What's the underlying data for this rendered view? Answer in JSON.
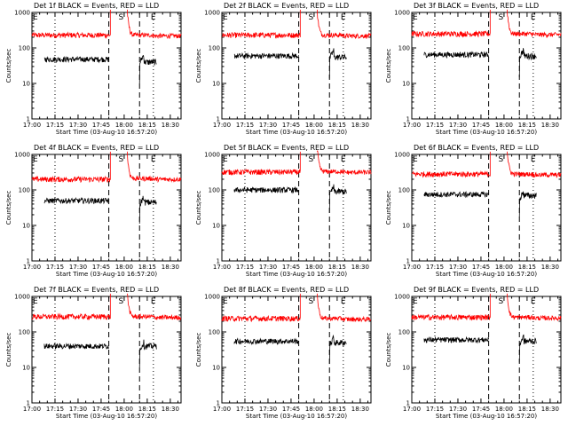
{
  "layout": {
    "rows": 3,
    "cols": 3
  },
  "chart_data": [
    {
      "type": "line",
      "title": "Det 1f BLACK = Events, RED = LLD",
      "xlabel": "Start Time (03-Aug-10 16:57:20)",
      "ylabel": "Counts/sec",
      "yscale": "log",
      "ylim": [
        1,
        1000
      ],
      "xlim": [
        "17:00",
        "18:37"
      ],
      "xticks": [
        "17:00",
        "17:15",
        "17:30",
        "17:45",
        "18:00",
        "18:15",
        "18:30"
      ],
      "yticks": [
        "1",
        "10",
        "100",
        "1000"
      ],
      "markers": [
        {
          "label": "E",
          "time": "17:00",
          "style": "none"
        },
        {
          "label": "S",
          "time": "17:58",
          "style": "dashed"
        },
        {
          "label": "E",
          "time": "18:19",
          "style": "dotted"
        }
      ],
      "vlines": [
        {
          "time": "17:15",
          "style": "dotted"
        },
        {
          "time": "17:50",
          "style": "dashed"
        },
        {
          "time": "18:10",
          "style": "dashed"
        },
        {
          "time": "18:19",
          "style": "dotted"
        }
      ],
      "series": [
        {
          "name": "LLD",
          "color": "#ff0000",
          "level": 230,
          "gap": [
            "17:51",
            "18:02"
          ],
          "peak": 1200,
          "post": 230
        },
        {
          "name": "Events",
          "color": "#000000",
          "level": 48,
          "start": "17:08",
          "end": "17:50",
          "restart": "18:10",
          "restart_level": 40,
          "bump": 60,
          "end2": "18:21"
        }
      ]
    },
    {
      "type": "line",
      "title": "Det 2f BLACK = Events, RED = LLD",
      "xlabel": "Start Time (03-Aug-10 16:57:20)",
      "ylabel": "Counts/sec",
      "yscale": "log",
      "ylim": [
        1,
        1000
      ],
      "xlim": [
        "17:00",
        "18:37"
      ],
      "xticks": [
        "17:00",
        "17:15",
        "17:30",
        "17:45",
        "18:00",
        "18:15",
        "18:30"
      ],
      "yticks": [
        "1",
        "10",
        "100",
        "1000"
      ],
      "markers": [
        {
          "label": "E",
          "time": "17:00",
          "style": "none"
        },
        {
          "label": "S",
          "time": "17:58",
          "style": "dashed"
        },
        {
          "label": "E",
          "time": "18:19",
          "style": "dotted"
        }
      ],
      "vlines": [
        {
          "time": "17:15",
          "style": "dotted"
        },
        {
          "time": "17:50",
          "style": "dashed"
        },
        {
          "time": "18:10",
          "style": "dashed"
        },
        {
          "time": "18:19",
          "style": "dotted"
        }
      ],
      "series": [
        {
          "name": "LLD",
          "color": "#ff0000",
          "level": 230,
          "gap": [
            "17:51",
            "18:02"
          ],
          "peak": 1200,
          "post": 230
        },
        {
          "name": "Events",
          "color": "#000000",
          "level": 60,
          "start": "17:08",
          "end": "17:50",
          "restart": "18:10",
          "restart_level": 55,
          "bump": 80,
          "end2": "18:21"
        }
      ]
    },
    {
      "type": "line",
      "title": "Det 3f BLACK = Events, RED = LLD",
      "xlabel": "Start Time (03-Aug-10 16:57:20)",
      "ylabel": "Counts/sec",
      "yscale": "log",
      "ylim": [
        1,
        1000
      ],
      "xlim": [
        "17:00",
        "18:37"
      ],
      "xticks": [
        "17:00",
        "17:15",
        "17:30",
        "17:45",
        "18:00",
        "18:15",
        "18:30"
      ],
      "yticks": [
        "1",
        "10",
        "100",
        "1000"
      ],
      "markers": [
        {
          "label": "E",
          "time": "17:00",
          "style": "none"
        },
        {
          "label": "S",
          "time": "17:58",
          "style": "dashed"
        },
        {
          "label": "E",
          "time": "18:19",
          "style": "dotted"
        }
      ],
      "vlines": [
        {
          "time": "17:15",
          "style": "dotted"
        },
        {
          "time": "17:50",
          "style": "dashed"
        },
        {
          "time": "18:10",
          "style": "dashed"
        },
        {
          "time": "18:19",
          "style": "dotted"
        }
      ],
      "series": [
        {
          "name": "LLD",
          "color": "#ff0000",
          "level": 250,
          "gap": [
            "17:51",
            "18:02"
          ],
          "peak": 1200,
          "post": 250
        },
        {
          "name": "Events",
          "color": "#000000",
          "level": 65,
          "start": "17:08",
          "end": "17:50",
          "restart": "18:10",
          "restart_level": 60,
          "bump": 85,
          "end2": "18:21"
        }
      ]
    },
    {
      "type": "line",
      "title": "Det 4f BLACK = Events, RED = LLD",
      "xlabel": "Start Time (03-Aug-10 16:57:20)",
      "ylabel": "Counts/sec",
      "yscale": "log",
      "ylim": [
        1,
        1000
      ],
      "xlim": [
        "17:00",
        "18:37"
      ],
      "xticks": [
        "17:00",
        "17:15",
        "17:30",
        "17:45",
        "18:00",
        "18:15",
        "18:30"
      ],
      "yticks": [
        "1",
        "10",
        "100",
        "1000"
      ],
      "markers": [
        {
          "label": "E",
          "time": "17:00",
          "style": "none"
        },
        {
          "label": "S",
          "time": "17:58",
          "style": "dashed"
        },
        {
          "label": "E",
          "time": "18:19",
          "style": "dotted"
        }
      ],
      "vlines": [
        {
          "time": "17:15",
          "style": "dotted"
        },
        {
          "time": "17:50",
          "style": "dashed"
        },
        {
          "time": "18:10",
          "style": "dashed"
        },
        {
          "time": "18:19",
          "style": "dotted"
        }
      ],
      "series": [
        {
          "name": "LLD",
          "color": "#ff0000",
          "level": 200,
          "gap": [
            "17:51",
            "18:02"
          ],
          "peak": 1200,
          "post": 210
        },
        {
          "name": "Events",
          "color": "#000000",
          "level": 50,
          "start": "17:08",
          "end": "17:50",
          "restart": "18:10",
          "restart_level": 45,
          "bump": 60,
          "end2": "18:21"
        }
      ]
    },
    {
      "type": "line",
      "title": "Det 5f BLACK = Events, RED = LLD",
      "xlabel": "Start Time (03-Aug-10 16:57:20)",
      "ylabel": "Counts/sec",
      "yscale": "log",
      "ylim": [
        1,
        1000
      ],
      "xlim": [
        "17:00",
        "18:37"
      ],
      "xticks": [
        "17:00",
        "17:15",
        "17:30",
        "17:45",
        "18:00",
        "18:15",
        "18:30"
      ],
      "yticks": [
        "1",
        "10",
        "100",
        "1000"
      ],
      "markers": [
        {
          "label": "E",
          "time": "17:00",
          "style": "none"
        },
        {
          "label": "S",
          "time": "17:58",
          "style": "dashed"
        },
        {
          "label": "E",
          "time": "18:19",
          "style": "dotted"
        }
      ],
      "vlines": [
        {
          "time": "17:15",
          "style": "dotted"
        },
        {
          "time": "17:50",
          "style": "dashed"
        },
        {
          "time": "18:10",
          "style": "dashed"
        },
        {
          "time": "18:19",
          "style": "dotted"
        }
      ],
      "series": [
        {
          "name": "LLD",
          "color": "#ff0000",
          "level": 320,
          "gap": [
            "17:51",
            "18:02"
          ],
          "peak": 1200,
          "post": 330
        },
        {
          "name": "Events",
          "color": "#000000",
          "level": 100,
          "start": "17:08",
          "end": "17:50",
          "restart": "18:10",
          "restart_level": 90,
          "bump": 115,
          "end2": "18:21"
        }
      ]
    },
    {
      "type": "line",
      "title": "Det 6f BLACK = Events, RED = LLD",
      "xlabel": "Start Time (03-Aug-10 16:57:20)",
      "ylabel": "Counts/sec",
      "yscale": "log",
      "ylim": [
        1,
        1000
      ],
      "xlim": [
        "17:00",
        "18:37"
      ],
      "xticks": [
        "17:00",
        "17:15",
        "17:30",
        "17:45",
        "18:00",
        "18:15",
        "18:30"
      ],
      "yticks": [
        "1",
        "10",
        "100",
        "1000"
      ],
      "markers": [
        {
          "label": "E",
          "time": "17:00",
          "style": "none"
        },
        {
          "label": "S",
          "time": "17:58",
          "style": "dashed"
        },
        {
          "label": "E",
          "time": "18:19",
          "style": "dotted"
        }
      ],
      "vlines": [
        {
          "time": "17:15",
          "style": "dotted"
        },
        {
          "time": "17:50",
          "style": "dashed"
        },
        {
          "time": "18:10",
          "style": "dashed"
        },
        {
          "time": "18:19",
          "style": "dotted"
        }
      ],
      "series": [
        {
          "name": "LLD",
          "color": "#ff0000",
          "level": 280,
          "gap": [
            "17:51",
            "18:02"
          ],
          "peak": 1200,
          "post": 280
        },
        {
          "name": "Events",
          "color": "#000000",
          "level": 75,
          "start": "17:08",
          "end": "17:50",
          "restart": "18:10",
          "restart_level": 70,
          "bump": 85,
          "end2": "18:21"
        }
      ]
    },
    {
      "type": "line",
      "title": "Det 7f BLACK = Events, RED = LLD",
      "xlabel": "Start Time (03-Aug-10 16:57:20)",
      "ylabel": "Counts/sec",
      "yscale": "log",
      "ylim": [
        1,
        1000
      ],
      "xlim": [
        "17:00",
        "18:37"
      ],
      "xticks": [
        "17:00",
        "17:15",
        "17:30",
        "17:45",
        "18:00",
        "18:15",
        "18:30"
      ],
      "yticks": [
        "1",
        "10",
        "100",
        "1000"
      ],
      "markers": [
        {
          "label": "E",
          "time": "17:00",
          "style": "none"
        },
        {
          "label": "S",
          "time": "17:58",
          "style": "dashed"
        },
        {
          "label": "E",
          "time": "18:19",
          "style": "dotted"
        }
      ],
      "vlines": [
        {
          "time": "17:15",
          "style": "dotted"
        },
        {
          "time": "17:50",
          "style": "dashed"
        },
        {
          "time": "18:10",
          "style": "dashed"
        },
        {
          "time": "18:19",
          "style": "dotted"
        }
      ],
      "series": [
        {
          "name": "LLD",
          "color": "#ff0000",
          "level": 270,
          "gap": [
            "17:51",
            "18:02"
          ],
          "peak": 1200,
          "post": 270
        },
        {
          "name": "Events",
          "color": "#000000",
          "level": 40,
          "start": "17:08",
          "end": "17:50",
          "restart": "18:10",
          "restart_level": 40,
          "bump": 48,
          "end2": "18:21"
        }
      ]
    },
    {
      "type": "line",
      "title": "Det 8f BLACK = Events, RED = LLD",
      "xlabel": "Start Time (03-Aug-10 16:57:20)",
      "ylabel": "Counts/sec",
      "yscale": "log",
      "ylim": [
        1,
        1000
      ],
      "xlim": [
        "17:00",
        "18:37"
      ],
      "xticks": [
        "17:00",
        "17:15",
        "17:30",
        "17:45",
        "18:00",
        "18:15",
        "18:30"
      ],
      "yticks": [
        "1",
        "10",
        "100",
        "1000"
      ],
      "markers": [
        {
          "label": "E",
          "time": "17:00",
          "style": "none"
        },
        {
          "label": "S",
          "time": "17:58",
          "style": "dashed"
        },
        {
          "label": "E",
          "time": "18:19",
          "style": "dotted"
        }
      ],
      "vlines": [
        {
          "time": "17:15",
          "style": "dotted"
        },
        {
          "time": "17:50",
          "style": "dashed"
        },
        {
          "time": "18:10",
          "style": "dashed"
        },
        {
          "time": "18:19",
          "style": "dotted"
        }
      ],
      "series": [
        {
          "name": "LLD",
          "color": "#ff0000",
          "level": 240,
          "gap": [
            "17:51",
            "18:02"
          ],
          "peak": 1200,
          "post": 240
        },
        {
          "name": "Events",
          "color": "#000000",
          "level": 55,
          "start": "17:08",
          "end": "17:50",
          "restart": "18:10",
          "restart_level": 50,
          "bump": 65,
          "end2": "18:21"
        }
      ]
    },
    {
      "type": "line",
      "title": "Det 9f BLACK = Events, RED = LLD",
      "xlabel": "Start Time (03-Aug-10 16:57:20)",
      "ylabel": "Counts/sec",
      "yscale": "log",
      "ylim": [
        1,
        1000
      ],
      "xlim": [
        "17:00",
        "18:37"
      ],
      "xticks": [
        "17:00",
        "17:15",
        "17:30",
        "17:45",
        "18:00",
        "18:15",
        "18:30"
      ],
      "yticks": [
        "1",
        "10",
        "100",
        "1000"
      ],
      "markers": [
        {
          "label": "E",
          "time": "17:00",
          "style": "none"
        },
        {
          "label": "S",
          "time": "17:58",
          "style": "dashed"
        },
        {
          "label": "E",
          "time": "18:19",
          "style": "dotted"
        }
      ],
      "vlines": [
        {
          "time": "17:15",
          "style": "dotted"
        },
        {
          "time": "17:50",
          "style": "dashed"
        },
        {
          "time": "18:10",
          "style": "dashed"
        },
        {
          "time": "18:19",
          "style": "dotted"
        }
      ],
      "series": [
        {
          "name": "LLD",
          "color": "#ff0000",
          "level": 260,
          "gap": [
            "17:51",
            "18:02"
          ],
          "peak": 1200,
          "post": 260
        },
        {
          "name": "Events",
          "color": "#000000",
          "level": 60,
          "start": "17:08",
          "end": "17:50",
          "restart": "18:10",
          "restart_level": 55,
          "bump": 70,
          "end2": "18:21"
        }
      ]
    }
  ]
}
